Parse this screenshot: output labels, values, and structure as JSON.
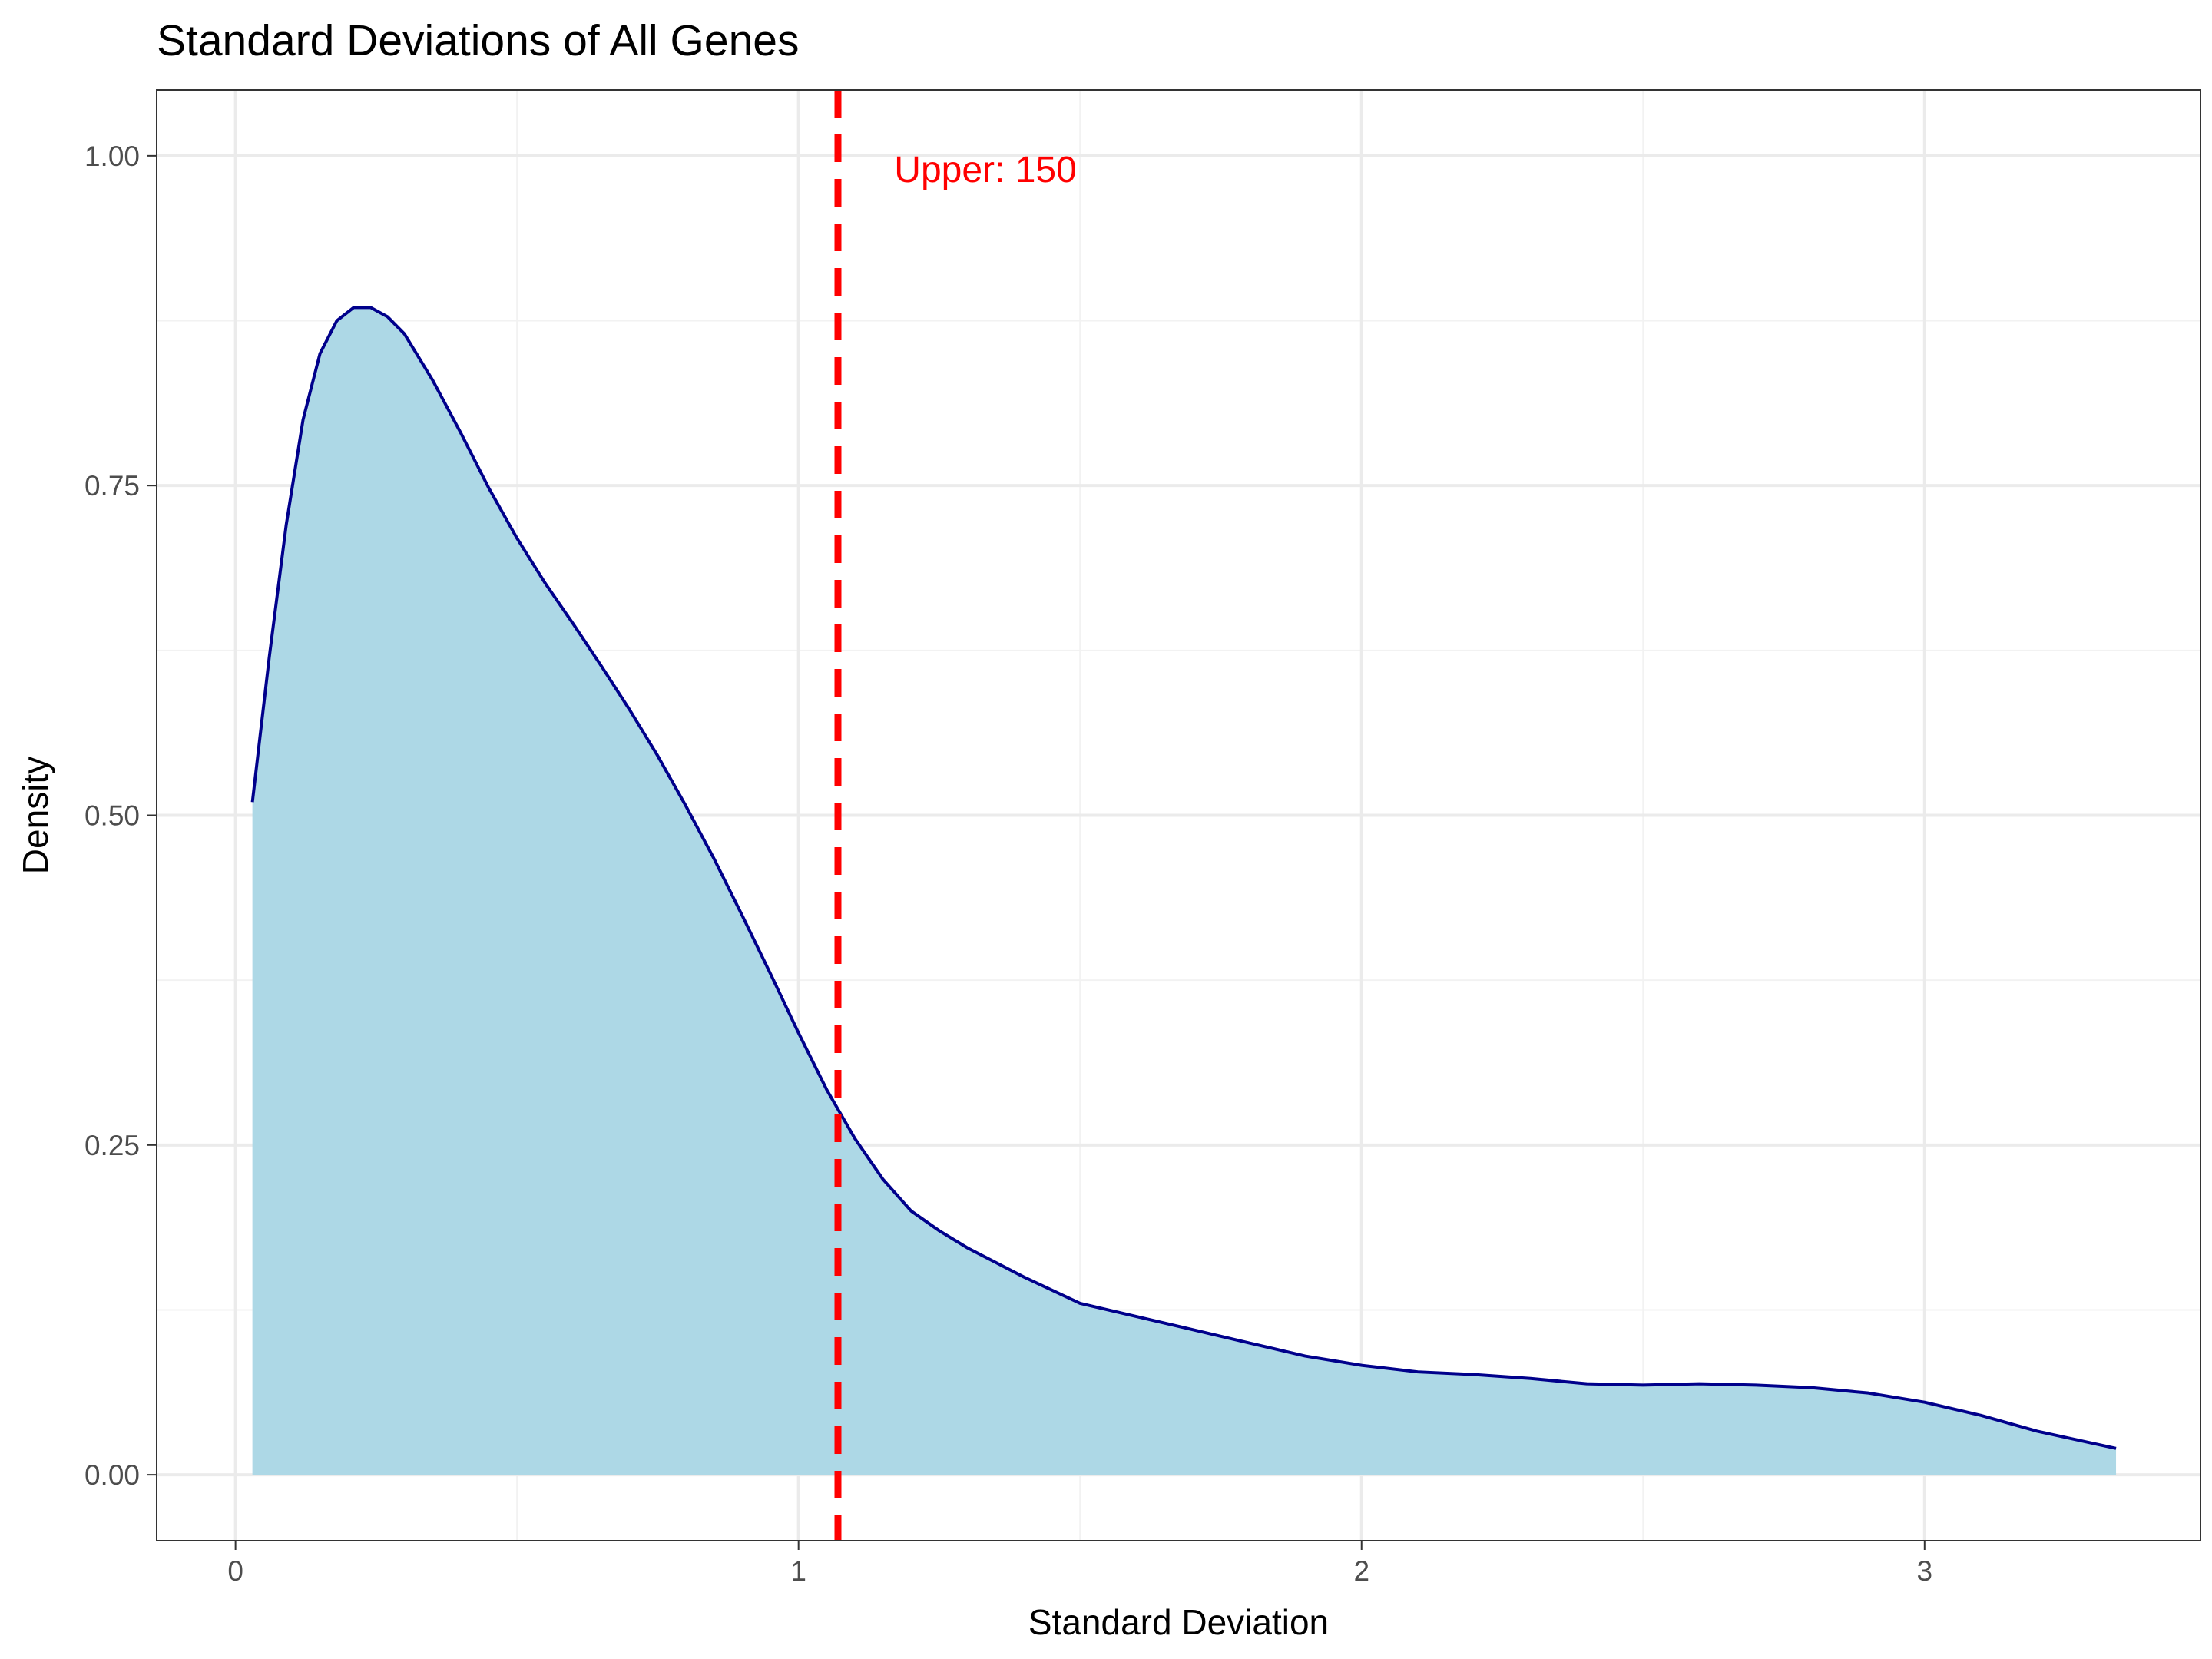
{
  "chart_data": {
    "type": "area",
    "title": "Standard Deviations of All Genes",
    "xlabel": "Standard Deviation",
    "ylabel": "Density",
    "xlim": [
      -0.14,
      3.49
    ],
    "ylim": [
      -0.05,
      1.05
    ],
    "x_ticks": [
      0,
      1,
      2,
      3
    ],
    "x_tick_labels": [
      "0",
      "1",
      "2",
      "3"
    ],
    "y_ticks": [
      0,
      0.25,
      0.5,
      0.75,
      1.0
    ],
    "y_tick_labels": [
      "0.00",
      "0.25",
      "0.50",
      "0.75",
      "1.00"
    ],
    "grid": true,
    "legend": "none",
    "series": [
      {
        "x": [
          0.03,
          0.06,
          0.09,
          0.12,
          0.15,
          0.18,
          0.21,
          0.24,
          0.27,
          0.3,
          0.35,
          0.4,
          0.45,
          0.5,
          0.55,
          0.6,
          0.65,
          0.7,
          0.75,
          0.8,
          0.85,
          0.9,
          0.95,
          1.0,
          1.05,
          1.1,
          1.15,
          1.2,
          1.25,
          1.3,
          1.35,
          1.4,
          1.5,
          1.6,
          1.7,
          1.8,
          1.9,
          2.0,
          2.1,
          2.2,
          2.3,
          2.4,
          2.5,
          2.6,
          2.7,
          2.8,
          2.9,
          3.0,
          3.1,
          3.2,
          3.34
        ],
        "y": [
          0.51,
          0.62,
          0.72,
          0.8,
          0.85,
          0.875,
          0.885,
          0.885,
          0.878,
          0.865,
          0.83,
          0.79,
          0.748,
          0.71,
          0.676,
          0.645,
          0.613,
          0.58,
          0.545,
          0.507,
          0.467,
          0.424,
          0.38,
          0.335,
          0.292,
          0.255,
          0.224,
          0.2,
          0.185,
          0.172,
          0.161,
          0.15,
          0.13,
          0.12,
          0.11,
          0.1,
          0.09,
          0.083,
          0.078,
          0.076,
          0.073,
          0.069,
          0.068,
          0.069,
          0.068,
          0.066,
          0.062,
          0.055,
          0.045,
          0.033,
          0.02
        ],
        "fill": "#add8e6",
        "line": "#00008b"
      }
    ],
    "reference_lines": [
      {
        "orientation": "vertical",
        "x": 1.07,
        "style": "dashed",
        "color": "#ff0000"
      }
    ],
    "annotations": [
      {
        "text": "Upper: 150",
        "x": 1.17,
        "y": 0.99,
        "color": "#ff0000"
      }
    ]
  }
}
